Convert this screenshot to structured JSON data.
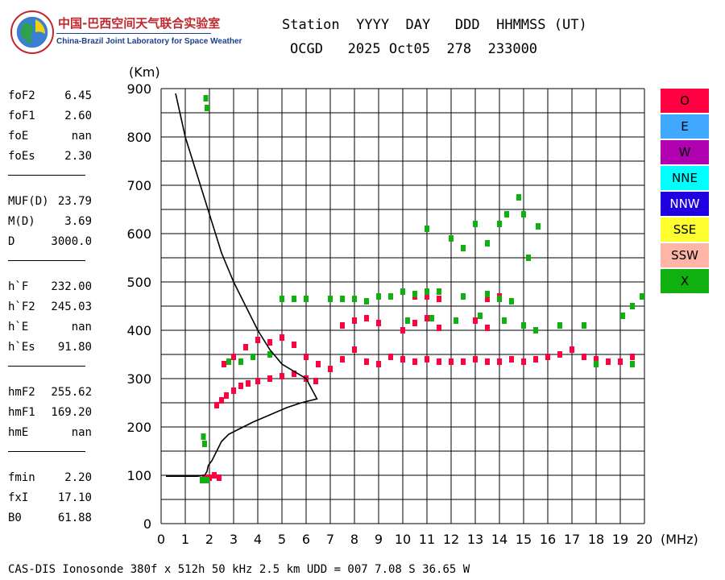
{
  "logo": {
    "name_cn": "中国-巴西空间天气联合实验室",
    "name_en": "China-Brazil Joint Laboratory for Space Weather",
    "icon": "globe-logo-icon"
  },
  "header": {
    "line1": "Station  YYYY  DAY   DDD  HHMMSS (UT)",
    "line2": "OCGD   2025 Oct05  278  233000"
  },
  "parameters": [
    {
      "group": [
        {
          "name": "foF2",
          "value": "6.45"
        },
        {
          "name": "foF1",
          "value": "2.60"
        },
        {
          "name": "foE",
          "value": "nan"
        },
        {
          "name": "foEs",
          "value": "2.30"
        }
      ]
    },
    {
      "group": [
        {
          "name": "MUF(D)",
          "value": "23.79"
        },
        {
          "name": "M(D)",
          "value": "3.69"
        },
        {
          "name": "D",
          "value": "3000.0"
        }
      ]
    },
    {
      "group": [
        {
          "name": "h`F",
          "value": "232.00"
        },
        {
          "name": "h`F2",
          "value": "245.03"
        },
        {
          "name": "h`E",
          "value": "nan"
        },
        {
          "name": "h`Es",
          "value": "91.80"
        }
      ]
    },
    {
      "group": [
        {
          "name": "hmF2",
          "value": "255.62"
        },
        {
          "name": "hmF1",
          "value": "169.20"
        },
        {
          "name": "hmE",
          "value": "nan"
        }
      ]
    },
    {
      "group": [
        {
          "name": "fmin",
          "value": "2.20"
        },
        {
          "name": "fxI",
          "value": "17.10"
        },
        {
          "name": "B0",
          "value": "61.88"
        }
      ]
    }
  ],
  "footer": "CAS-DIS Ionosonde 380f x 512h 50 kHz 2.5 km UDD = 007 7.08 S 36.65 W",
  "legend": [
    {
      "label": "O",
      "color": "#ff0040",
      "text_color": "#000000"
    },
    {
      "label": "E",
      "color": "#40a8ff",
      "text_color": "#000000"
    },
    {
      "label": "W",
      "color": "#b000b0",
      "text_color": "#000000"
    },
    {
      "label": "NNE",
      "color": "#00ffff",
      "text_color": "#000000"
    },
    {
      "label": "NNW",
      "color": "#2000e0",
      "text_color": "#ffffff"
    },
    {
      "label": "SSE",
      "color": "#ffff30",
      "text_color": "#000000"
    },
    {
      "label": "SSW",
      "color": "#ffb4a8",
      "text_color": "#000000"
    },
    {
      "label": "X",
      "color": "#10b010",
      "text_color": "#000000"
    }
  ],
  "chart_data": {
    "type": "scatter",
    "title": "",
    "xlabel": "(MHz)",
    "ylabel": "(Km)",
    "xlim": [
      0,
      20
    ],
    "ylim": [
      0,
      900
    ],
    "x_ticks": [
      "0",
      "1",
      "2",
      "3",
      "4",
      "5",
      "6",
      "7",
      "8",
      "9",
      "10",
      "11",
      "12",
      "13",
      "14",
      "15",
      "16",
      "17",
      "18",
      "19",
      "20"
    ],
    "y_ticks": [
      "0",
      "100",
      "200",
      "300",
      "400",
      "500",
      "600",
      "700",
      "800",
      "900"
    ],
    "grid": true,
    "series": [
      {
        "name": "O",
        "color": "#ff0040",
        "points": [
          [
            2.3,
            245
          ],
          [
            2.5,
            255
          ],
          [
            2.7,
            265
          ],
          [
            3.0,
            275
          ],
          [
            3.3,
            285
          ],
          [
            3.6,
            290
          ],
          [
            4.0,
            295
          ],
          [
            4.5,
            300
          ],
          [
            5.0,
            305
          ],
          [
            5.5,
            310
          ],
          [
            6.0,
            300
          ],
          [
            6.4,
            295
          ],
          [
            2.6,
            330
          ],
          [
            3.0,
            345
          ],
          [
            3.5,
            365
          ],
          [
            4.0,
            380
          ],
          [
            4.5,
            375
          ],
          [
            5.0,
            385
          ],
          [
            5.5,
            370
          ],
          [
            6.0,
            345
          ],
          [
            6.5,
            330
          ],
          [
            7.0,
            320
          ],
          [
            7.5,
            340
          ],
          [
            8.0,
            360
          ],
          [
            8.5,
            335
          ],
          [
            9.0,
            330
          ],
          [
            9.5,
            345
          ],
          [
            10.0,
            340
          ],
          [
            10.5,
            335
          ],
          [
            11.0,
            340
          ],
          [
            11.5,
            335
          ],
          [
            12.0,
            335
          ],
          [
            12.5,
            335
          ],
          [
            13.0,
            340
          ],
          [
            13.5,
            335
          ],
          [
            14.0,
            335
          ],
          [
            14.5,
            340
          ],
          [
            15.0,
            335
          ],
          [
            15.5,
            340
          ],
          [
            16.0,
            345
          ],
          [
            16.5,
            350
          ],
          [
            17.0,
            360
          ],
          [
            17.5,
            345
          ],
          [
            18.0,
            340
          ],
          [
            18.5,
            335
          ],
          [
            19.0,
            335
          ],
          [
            19.5,
            345
          ],
          [
            7.5,
            410
          ],
          [
            8.0,
            420
          ],
          [
            8.5,
            425
          ],
          [
            9.0,
            415
          ],
          [
            10.0,
            400
          ],
          [
            10.5,
            415
          ],
          [
            11.0,
            425
          ],
          [
            11.5,
            405
          ],
          [
            13.0,
            420
          ],
          [
            13.5,
            405
          ],
          [
            10.5,
            470
          ],
          [
            11.0,
            470
          ],
          [
            11.5,
            465
          ],
          [
            12.5,
            470
          ],
          [
            13.5,
            465
          ],
          [
            14.0,
            470
          ],
          [
            1.8,
            95
          ],
          [
            2.0,
            95
          ],
          [
            2.2,
            100
          ],
          [
            2.4,
            95
          ]
        ]
      },
      {
        "name": "X",
        "color": "#10b010",
        "points": [
          [
            1.85,
            880
          ],
          [
            1.9,
            860
          ],
          [
            1.75,
            180
          ],
          [
            1.8,
            165
          ],
          [
            1.7,
            90
          ],
          [
            1.9,
            90
          ],
          [
            2.8,
            335
          ],
          [
            3.3,
            335
          ],
          [
            3.8,
            345
          ],
          [
            4.5,
            350
          ],
          [
            5.0,
            465
          ],
          [
            5.5,
            465
          ],
          [
            6.0,
            465
          ],
          [
            7.0,
            465
          ],
          [
            7.5,
            465
          ],
          [
            8.0,
            465
          ],
          [
            8.5,
            460
          ],
          [
            9.0,
            470
          ],
          [
            9.5,
            470
          ],
          [
            10.0,
            480
          ],
          [
            10.5,
            475
          ],
          [
            11.0,
            480
          ],
          [
            11.5,
            480
          ],
          [
            12.5,
            470
          ],
          [
            13.5,
            475
          ],
          [
            14.0,
            465
          ],
          [
            14.5,
            460
          ],
          [
            10.2,
            420
          ],
          [
            11.2,
            425
          ],
          [
            12.2,
            420
          ],
          [
            13.2,
            430
          ],
          [
            14.2,
            420
          ],
          [
            15.0,
            410
          ],
          [
            15.5,
            400
          ],
          [
            16.5,
            410
          ],
          [
            17.5,
            410
          ],
          [
            11.0,
            610
          ],
          [
            12.0,
            590
          ],
          [
            12.5,
            570
          ],
          [
            13.0,
            620
          ],
          [
            13.5,
            580
          ],
          [
            14.0,
            620
          ],
          [
            14.3,
            640
          ],
          [
            14.8,
            675
          ],
          [
            15.0,
            640
          ],
          [
            15.2,
            550
          ],
          [
            15.6,
            615
          ],
          [
            19.1,
            430
          ],
          [
            19.5,
            450
          ],
          [
            19.9,
            470
          ],
          [
            19.5,
            330
          ],
          [
            18.0,
            330
          ]
        ]
      }
    ],
    "profile": {
      "name": "",
      "color": "#000000",
      "points": [
        [
          0.2,
          98
        ],
        [
          0.5,
          98
        ],
        [
          1.0,
          98
        ],
        [
          1.5,
          98
        ],
        [
          1.8,
          100
        ],
        [
          1.9,
          108
        ],
        [
          1.95,
          120
        ],
        [
          2.1,
          130
        ],
        [
          2.3,
          150
        ],
        [
          2.5,
          170
        ],
        [
          2.8,
          185
        ],
        [
          3.2,
          195
        ],
        [
          3.8,
          210
        ],
        [
          4.5,
          225
        ],
        [
          5.2,
          240
        ],
        [
          5.8,
          250
        ],
        [
          6.2,
          255
        ],
        [
          6.45,
          258
        ],
        [
          6.0,
          300
        ],
        [
          5.0,
          330
        ],
        [
          4.5,
          360
        ],
        [
          4.0,
          400
        ],
        [
          3.5,
          450
        ],
        [
          3.0,
          500
        ],
        [
          2.5,
          560
        ],
        [
          2.0,
          640
        ],
        [
          1.5,
          720
        ],
        [
          1.0,
          800
        ],
        [
          0.6,
          890
        ]
      ]
    }
  }
}
